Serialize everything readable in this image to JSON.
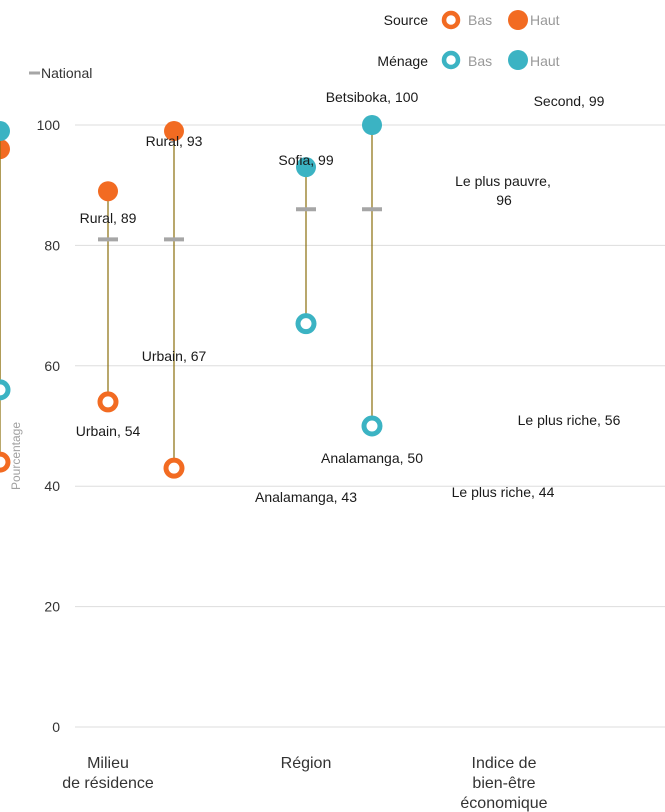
{
  "chart_data": {
    "type": "scatter",
    "ylabel": "Pourcentage",
    "ylim": [
      0,
      100
    ],
    "yticks": [
      0,
      20,
      40,
      60,
      80,
      100
    ],
    "grid": true,
    "categories": [
      [
        "Milieu",
        "de résidence"
      ],
      [
        "Région"
      ],
      [
        "Indice de",
        "bien-être",
        "économique"
      ]
    ],
    "legend": {
      "source_label": "Source",
      "menage_label": "Ménage",
      "bas_label": "Bas",
      "haut_label": "Haut",
      "national_label": "National",
      "placement": "top-right"
    },
    "colors": {
      "source": "#F26B22",
      "menage": "#3BB3C3",
      "national": "#A6A6A6",
      "range_line": "#8A6D0B",
      "grid": "#DDDDDD"
    },
    "series": [
      {
        "name": "Source",
        "groups": [
          {
            "national": 81,
            "haut": {
              "value": 89,
              "label": "Rural, 89"
            },
            "bas": {
              "value": 54,
              "label": "Urbain, 54"
            }
          },
          {
            "national": 81,
            "haut": {
              "value": 99,
              "label": "Sofia, 99"
            },
            "bas": {
              "value": 43,
              "label": "Analamanga, 43"
            }
          },
          {
            "national": 81,
            "haut": {
              "value": 96,
              "label": "Le plus pauvre, 96"
            },
            "bas": {
              "value": 44,
              "label": "Le plus riche, 44"
            }
          }
        ]
      },
      {
        "name": "Ménage",
        "groups": [
          {
            "national": 86,
            "haut": {
              "value": 93,
              "label": "Rural, 93"
            },
            "bas": {
              "value": 67,
              "label": "Urbain, 67"
            }
          },
          {
            "national": 86,
            "haut": {
              "value": 100,
              "label": "Betsiboka, 100"
            },
            "bas": {
              "value": 50,
              "label": "Analamanga, 50"
            }
          },
          {
            "national": 86,
            "haut": {
              "value": 99,
              "label": "Second, 99"
            },
            "bas": {
              "value": 56,
              "label": "Le plus riche, 56"
            }
          }
        ]
      }
    ]
  }
}
